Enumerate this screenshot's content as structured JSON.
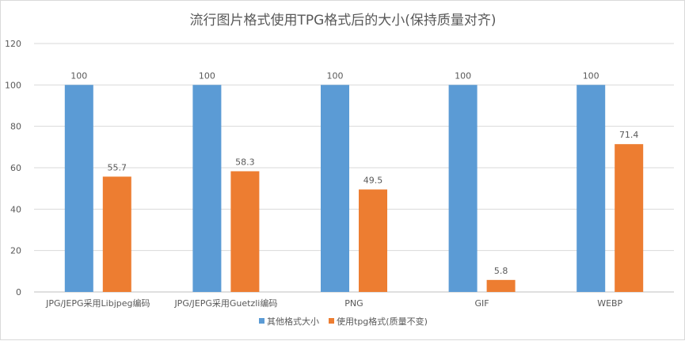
{
  "chart_data": {
    "type": "bar",
    "title": "流行图片格式使用TPG格式后的大小(保持质量对齐)",
    "categories": [
      "JPG/JEPG采用Libjpeg编码",
      "JPG/JEPG采用Guetzli编码",
      "PNG",
      "GIF",
      "WEBP"
    ],
    "series": [
      {
        "name": "其他格式大小",
        "values": [
          100,
          100,
          100,
          100,
          100
        ],
        "color": "#5b9bd5"
      },
      {
        "name": "使用tpg格式(质量不变)",
        "values": [
          55.7,
          58.3,
          49.5,
          5.8,
          71.4
        ],
        "color": "#ed7d31"
      }
    ],
    "data_labels": [
      [
        "100",
        "100",
        "100",
        "100",
        "100"
      ],
      [
        "55.7",
        "58.3",
        "49.5",
        "5.8",
        "71.4"
      ]
    ],
    "ylim": [
      0,
      120
    ],
    "yticks": [
      "0",
      "20",
      "40",
      "60",
      "80",
      "100",
      "120"
    ],
    "grid": true,
    "legend_position": "bottom"
  }
}
